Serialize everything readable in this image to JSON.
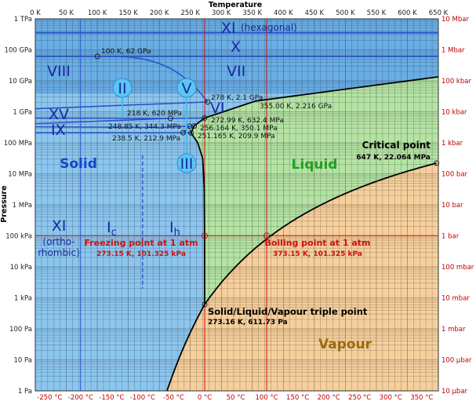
{
  "axes": {
    "top_title": "Temperature",
    "left_title": "Pressure",
    "top_ticks": [
      "0 K",
      "50 K",
      "100 K",
      "150 K",
      "200 K",
      "250 K",
      "300 K",
      "350 K",
      "400 K",
      "450 K",
      "500 K",
      "550 K",
      "600 K",
      "650 K"
    ],
    "bottom_ticks": [
      "-250 °C",
      "-200 °C",
      "-150 °C",
      "-100 °C",
      "-50 °C",
      "0 °C",
      "50 °C",
      "100 °C",
      "150 °C",
      "200 °C",
      "250 °C",
      "300 °C",
      "350 °C"
    ],
    "left_ticks": [
      "1 TPa",
      "100 GPa",
      "10 GPa",
      "1 GPa",
      "100 MPa",
      "10 MPa",
      "1 MPa",
      "100 kPa",
      "10 kPa",
      "1 kPa",
      "100 Pa",
      "10 Pa",
      "1 Pa"
    ],
    "right_ticks": [
      "10 Mbar",
      "1 Mbar",
      "100 kbar",
      "10 kbar",
      "1 kbar",
      "100 bar",
      "10 bar",
      "1 bar",
      "100 mbar",
      "10 mbar",
      "1 mbar",
      "100 µbar",
      "10 µbar"
    ],
    "x_range_K": [
      0,
      650
    ],
    "y_range_Pa_log10": [
      0,
      12
    ],
    "y_scale": "log",
    "grid": true
  },
  "regions": {
    "solid": "Solid",
    "liquid": "Liquid",
    "vapour": "Vapour"
  },
  "ice_phases": {
    "xi_hex": "XI",
    "xi_hex_note": "(hexagonal)",
    "x": "X",
    "viii": "VIII",
    "vii": "VII",
    "vi": "VI",
    "xv": "XV",
    "ix": "IX",
    "ii": "II",
    "v": "V",
    "iii": "III",
    "xi_ortho": "XI",
    "xi_ortho_note1": "(ortho-",
    "xi_ortho_note2": "rhombic)",
    "ic": "I",
    "ic_sub": "c",
    "ih": "I",
    "ih_sub": "h"
  },
  "points": {
    "p100K": "100 K, 62 GPa",
    "p278K": "278 K, 2.1 GPa",
    "p355K": "355.00 K, 2.216 GPa",
    "p218K": "218 K, 620 MPa",
    "p272K": "272.99 K, 632.4 MPa",
    "p248K": "248.85 K, 344.3 MPa",
    "p256K": "256.164 K, 350.1 MPa",
    "p238K": "238.5 K, 212.9 MPa",
    "p251K": "251.165 K, 209.9 MPa"
  },
  "annotations": {
    "critical_title": "Critical point",
    "critical_value": "647 K, 22.064 MPa",
    "triple_title": "Solid/Liquid/Vapour triple point",
    "triple_value": "273.16 K, 611.73 Pa",
    "freezing_title": "Freezing point at 1 atm",
    "freezing_value": "273.15 K, 101.325 kPa",
    "boiling_title": "Boiling point at 1 atm",
    "boiling_value": "373.15 K, 101.325 kPa"
  },
  "colors": {
    "solid": "#8cc6ef",
    "solid_high": "#6aaee6",
    "liquid": "#b4e3a4",
    "vapour": "#f6cf9c",
    "boundary": "#000000",
    "ice_line": "#2a55c8",
    "reference": "#d01010",
    "ice_label": "#1a2aa0",
    "solid_label": "#1446c8",
    "liquid_label": "#22a022",
    "vapour_label": "#9a6c10"
  }
}
